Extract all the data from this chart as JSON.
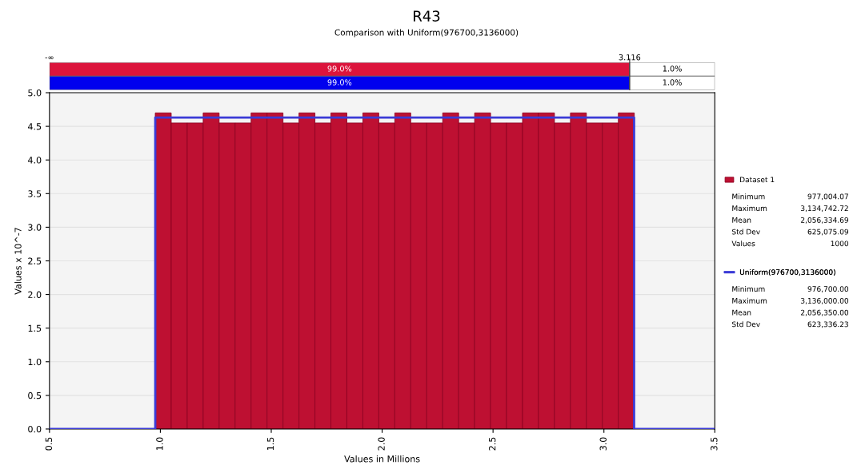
{
  "chart_data": [
    {
      "type": "histogram",
      "title": "R43",
      "subtitle": "Comparison with Uniform(976700,3136000)",
      "xlabel": "Values in Millions",
      "ylabel": "Values x 10^-7",
      "bins": [
        0.977,
        1.049,
        1.121,
        1.193,
        1.265,
        1.337,
        1.409,
        1.481,
        1.553,
        1.625,
        1.697,
        1.769,
        1.841,
        1.913,
        1.985,
        2.057,
        2.129,
        2.201,
        2.273,
        2.345,
        2.417,
        2.489,
        2.561,
        2.633,
        2.705,
        2.777,
        2.849,
        2.921,
        2.993,
        3.065,
        3.137
      ],
      "series": [
        {
          "name": "Dataset 1",
          "color": "#be1032",
          "values": [
            4.7,
            4.55,
            4.55,
            4.7,
            4.55,
            4.55,
            4.7,
            4.7,
            4.55,
            4.7,
            4.55,
            4.7,
            4.55,
            4.7,
            4.55,
            4.7,
            4.55,
            4.55,
            4.7,
            4.55,
            4.7,
            4.55,
            4.55,
            4.7,
            4.7,
            4.55,
            4.7,
            4.55,
            4.55,
            4.7
          ]
        },
        {
          "name": "Uniform(976700,3136000)",
          "type": "line",
          "color": "#3b3bd6",
          "x": [
            0.5,
            0.977,
            0.977,
            3.136,
            3.136,
            3.5
          ],
          "values": [
            0,
            0,
            4.63,
            4.63,
            0,
            0
          ]
        }
      ],
      "xlim": [
        0.5,
        3.5
      ],
      "xticks": [
        {
          "value": 0.5,
          "label": "0.5"
        },
        {
          "value": 1.0,
          "label": "1.0"
        },
        {
          "value": 1.5,
          "label": "1.5"
        },
        {
          "value": 2.0,
          "label": "2.0"
        },
        {
          "value": 2.5,
          "label": "2.5"
        },
        {
          "value": 3.0,
          "label": "3.0"
        },
        {
          "value": 3.5,
          "label": "3.5"
        }
      ],
      "ylim": [
        0,
        5.0
      ],
      "yticks": [
        {
          "value": 0,
          "label": "0.0"
        },
        {
          "value": 0.5,
          "label": "0.5"
        },
        {
          "value": 1.0,
          "label": "1.0"
        },
        {
          "value": 1.5,
          "label": "1.5"
        },
        {
          "value": 2.0,
          "label": "2.0"
        },
        {
          "value": 2.5,
          "label": "2.5"
        },
        {
          "value": 3.0,
          "label": "3.0"
        },
        {
          "value": 3.5,
          "label": "3.5"
        },
        {
          "value": 4.0,
          "label": "4.0"
        },
        {
          "value": 4.5,
          "label": "4.5"
        },
        {
          "value": 5.0,
          "label": "5.0"
        }
      ],
      "grid": "y",
      "legend": "right",
      "annotations": [
        "Minimum 977,004.07",
        "Maximum 3,134,742.72",
        "Mean 2,056,334.69",
        "Std Dev 625,075.09",
        "Values 1000",
        "Minimum 976,700.00",
        "Maximum 3,136,000.00",
        "Mean 2,056,350.00",
        "Std Dev 623,336.23"
      ]
    },
    {
      "type": "other",
      "annotations": [
        "-∞",
        "3.116",
        "99.0%",
        "1.0%",
        "99.0%",
        "1.0%"
      ]
    }
  ]
}
